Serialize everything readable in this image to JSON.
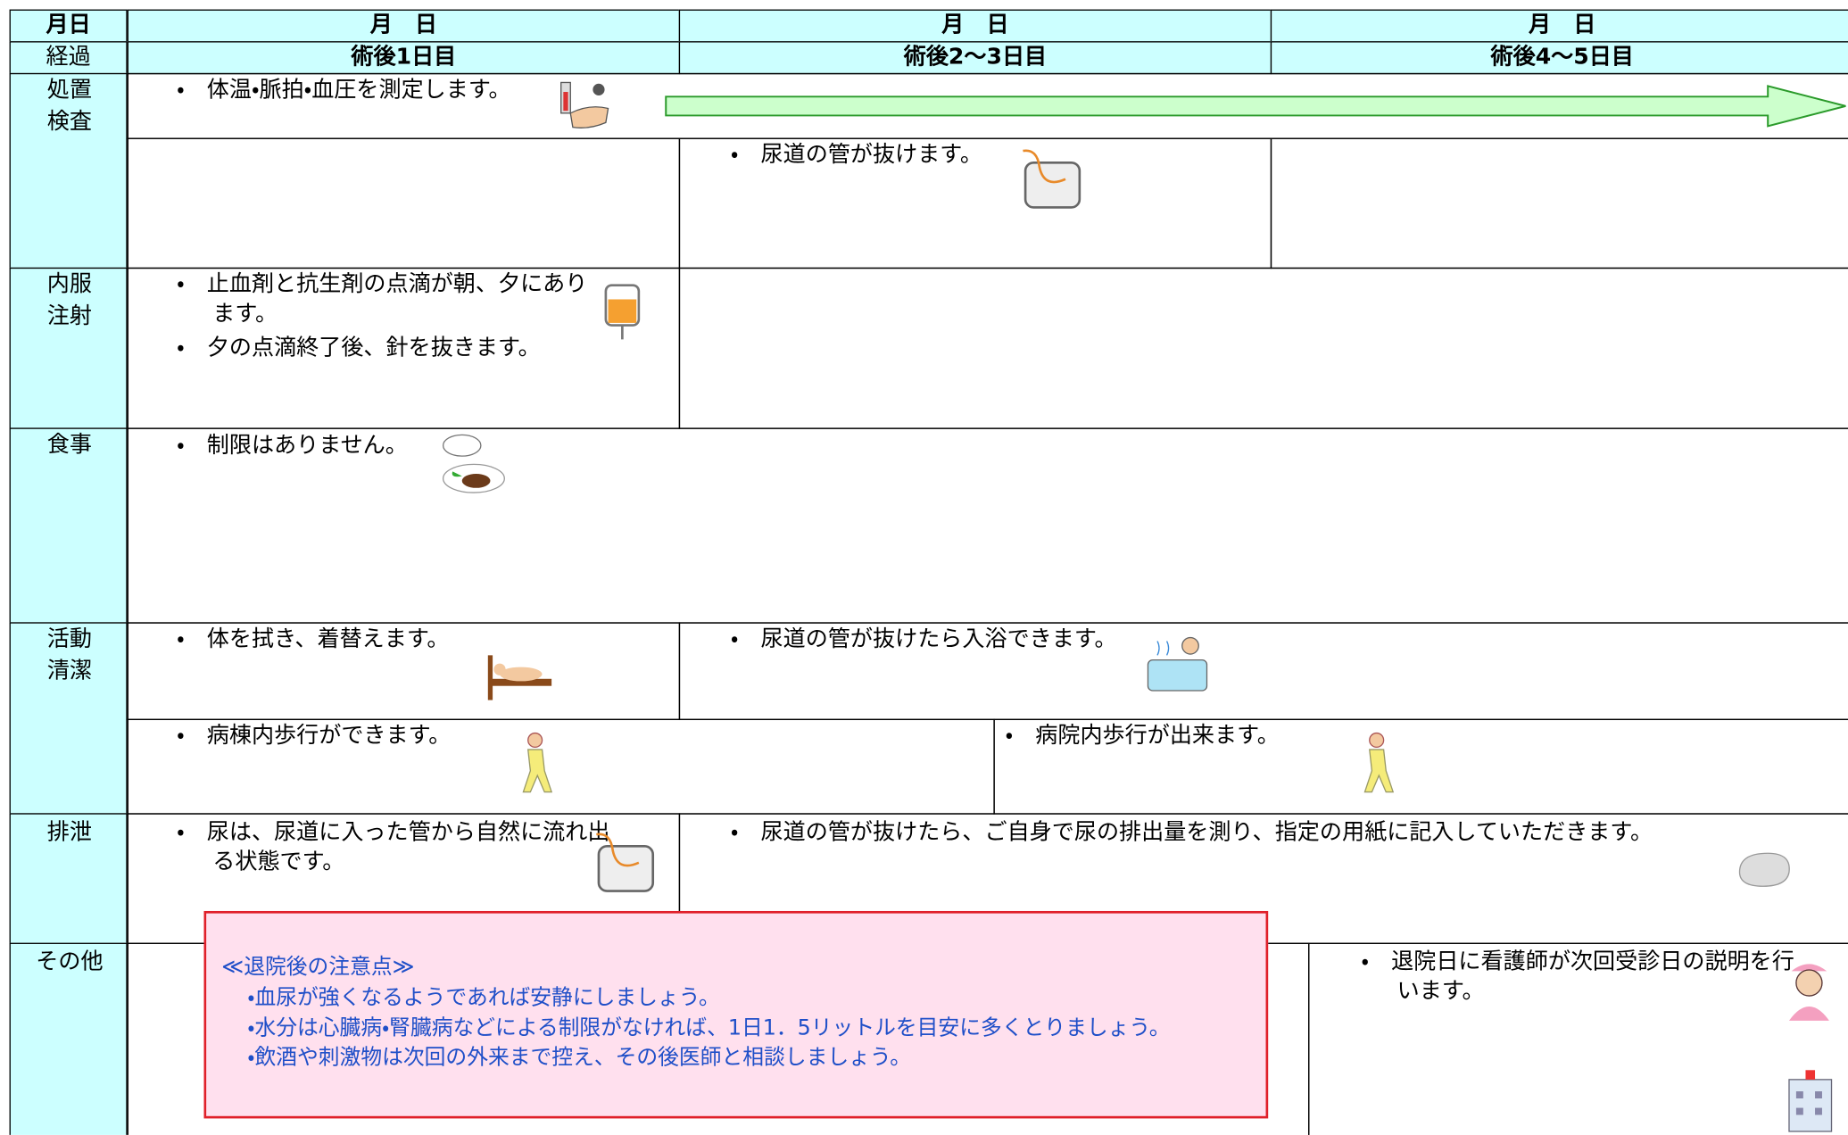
{
  "header": {
    "date_label": "月日",
    "course_label": "経過",
    "dates": [
      "月　日",
      "月　日",
      "月　日"
    ],
    "days": [
      "術後1日目",
      "術後2～3日目",
      "術後4～5日目"
    ]
  },
  "treatment": {
    "label": [
      "処置",
      "検査"
    ],
    "day1": "・　体温・脈拍・血圧を測定します。",
    "day2_3": "・　尿道の管が抜けます。"
  },
  "medication": {
    "label": [
      "内服",
      "注射"
    ],
    "day1": [
      "・　止血剤と抗生剤の点滴が朝、夕にあります。",
      "・　夕の点滴終了後、針を抜きます。"
    ]
  },
  "meal": {
    "label": [
      "食事"
    ],
    "day1": "・　制限はありません。"
  },
  "activity": {
    "label": [
      "活動",
      "清潔"
    ],
    "hygiene_day1": "・　体を拭き、着替えます。",
    "hygiene_day2_3": "・　尿道の管が抜けたら入浴できます。",
    "walk_day1": "・　病棟内歩行ができます。",
    "walk_later": "・　病院内歩行が出来ます。"
  },
  "excretion": {
    "label": [
      "排泄"
    ],
    "day1": "・　尿は、尿道に入った管から自然に流れ出る状態です。",
    "later": "・　尿道の管が抜けたら、ご自身で尿の排出量を測り、指定の用紙に記入していただきます。"
  },
  "other": {
    "label": [
      "その他"
    ],
    "discharge": "・　退院日に看護師が次回受診日の説明を行います。"
  },
  "notice": {
    "title": "≪退院後の注意点≫",
    "items": [
      "・血尿が強くなるようであれば安静にしましょう。",
      "・水分は心臓病・腎臓病などによる制限がなければ、1日1．5リットルを目安に多くとりましょう。",
      "・飲酒や刺激物は次回の外来まで控え、その後医師と相談しましょう。"
    ]
  }
}
